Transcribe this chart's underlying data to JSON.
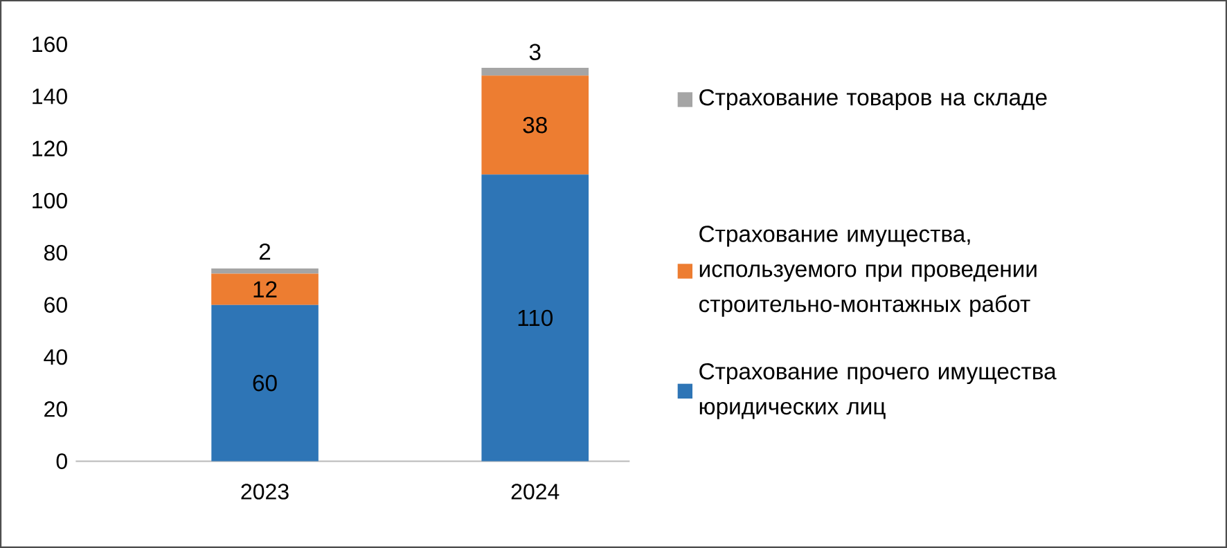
{
  "chart_data": {
    "type": "bar",
    "stacked": true,
    "categories": [
      "2023",
      "2024"
    ],
    "series": [
      {
        "name": "Страхование прочего имущества юридических лиц",
        "color": "#2e75b6",
        "values": [
          60,
          110
        ]
      },
      {
        "name": "Страхование имущества, используемого при проведении строительно-монтажных работ",
        "color": "#ed7d31",
        "values": [
          12,
          38
        ]
      },
      {
        "name": "Страхование товаров на складе",
        "color": "#a5a5a5",
        "values": [
          2,
          3
        ]
      }
    ],
    "ylim": [
      0,
      160
    ],
    "yticks": [
      0,
      20,
      40,
      60,
      80,
      100,
      120,
      140,
      160
    ],
    "data_labels": true,
    "legend": "right",
    "grid": false
  }
}
